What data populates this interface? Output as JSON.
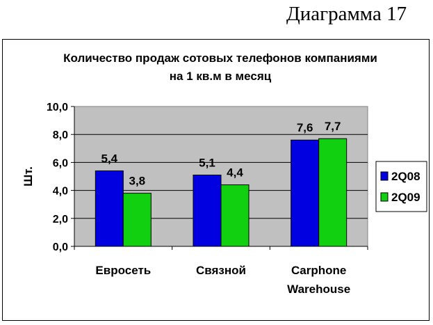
{
  "page_label": "Диаграмма 17",
  "chart_data": {
    "type": "bar",
    "title_lines": [
      "Количество продаж сотовых телефонов компаниями",
      "на 1 кв.м в месяц"
    ],
    "ylabel": "Шт.",
    "xlabel": "",
    "ylim": [
      0,
      10
    ],
    "y_ticks": [
      "0,0",
      "2,0",
      "4,0",
      "6,0",
      "8,0",
      "10,0"
    ],
    "grid": true,
    "legend_position": "right",
    "categories": [
      [
        "Евросеть"
      ],
      [
        "Связной"
      ],
      [
        "Carphone",
        "Warehouse"
      ]
    ],
    "series": [
      {
        "name": "2Q08",
        "color": "#0000e0",
        "values": [
          5.4,
          5.1,
          7.6
        ],
        "labels": [
          "5,4",
          "5,1",
          "7,6"
        ]
      },
      {
        "name": "2Q09",
        "color": "#10d010",
        "values": [
          3.8,
          4.4,
          7.7
        ],
        "labels": [
          "3,8",
          "4,4",
          "7,7"
        ]
      }
    ],
    "plot_background": "#c0c0c0"
  }
}
